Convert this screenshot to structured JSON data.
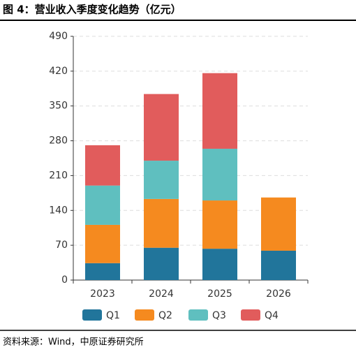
{
  "chart_data": {
    "type": "stacked_bar",
    "title": "图 4：营业收入季度变化趋势（亿元）",
    "categories": [
      "2023",
      "2024",
      "2025",
      "2026"
    ],
    "series": [
      {
        "name": "Q1",
        "color": "#21759b",
        "values": [
          34,
          65,
          63,
          59
        ]
      },
      {
        "name": "Q2",
        "color": "#f58a1f",
        "values": [
          77,
          98,
          97,
          107
        ]
      },
      {
        "name": "Q3",
        "color": "#5fbfbf",
        "values": [
          79,
          77,
          104,
          null
        ]
      },
      {
        "name": "Q4",
        "color": "#e15c5c",
        "values": [
          81,
          134,
          152,
          null
        ]
      }
    ],
    "ylim": [
      0,
      490
    ],
    "yticks": [
      0,
      70,
      140,
      210,
      280,
      350,
      420,
      490
    ],
    "grid": true,
    "legend": "bottom",
    "source": "资料来源：Wind，中原证券研究所"
  }
}
